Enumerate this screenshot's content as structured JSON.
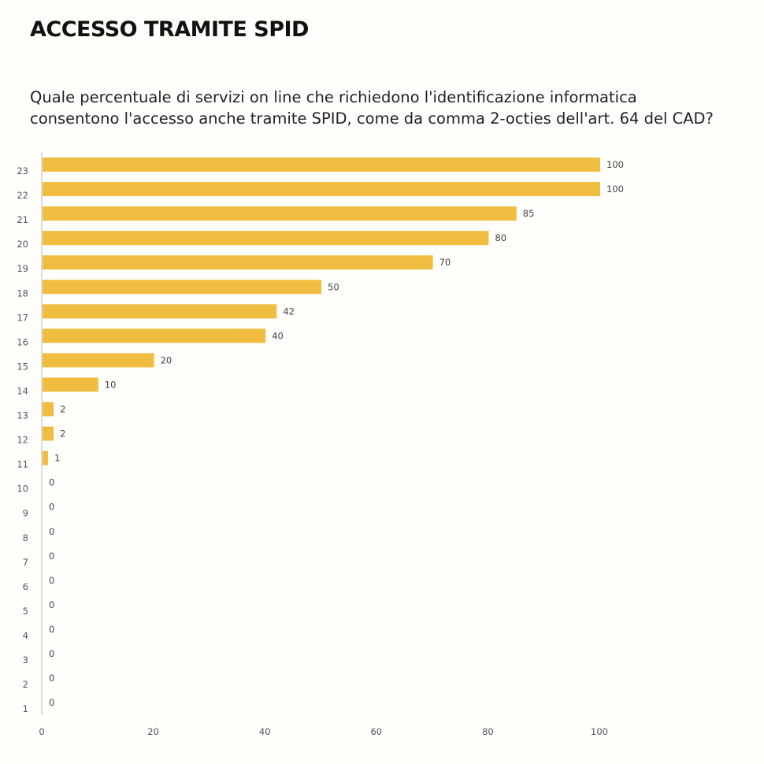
{
  "title": "ACCESSO TRAMITE SPID",
  "subtitle": "Quale percentuale di servizi on line che richiedono l'identificazione informatica consentono l'accesso anche tramite SPID, come da comma 2-octies dell'art. 64 del CAD?",
  "colors": {
    "bar": "#f0bd41",
    "axis": "#cfcfcf",
    "background": "#fefefb"
  },
  "chart_data": {
    "type": "bar",
    "orientation": "horizontal",
    "categories": [
      "23",
      "22",
      "21",
      "20",
      "19",
      "18",
      "17",
      "16",
      "15",
      "14",
      "13",
      "12",
      "11",
      "10",
      "9",
      "8",
      "7",
      "6",
      "5",
      "4",
      "3",
      "2",
      "1"
    ],
    "values": [
      100,
      100,
      85,
      80,
      70,
      50,
      42,
      40,
      20,
      10,
      2,
      2,
      1,
      0,
      0,
      0,
      0,
      0,
      0,
      0,
      0,
      0,
      0
    ],
    "xlim": [
      0,
      100
    ],
    "xticks": [
      0,
      20,
      40,
      60,
      80,
      100
    ],
    "grid": false,
    "data_labels": true
  }
}
